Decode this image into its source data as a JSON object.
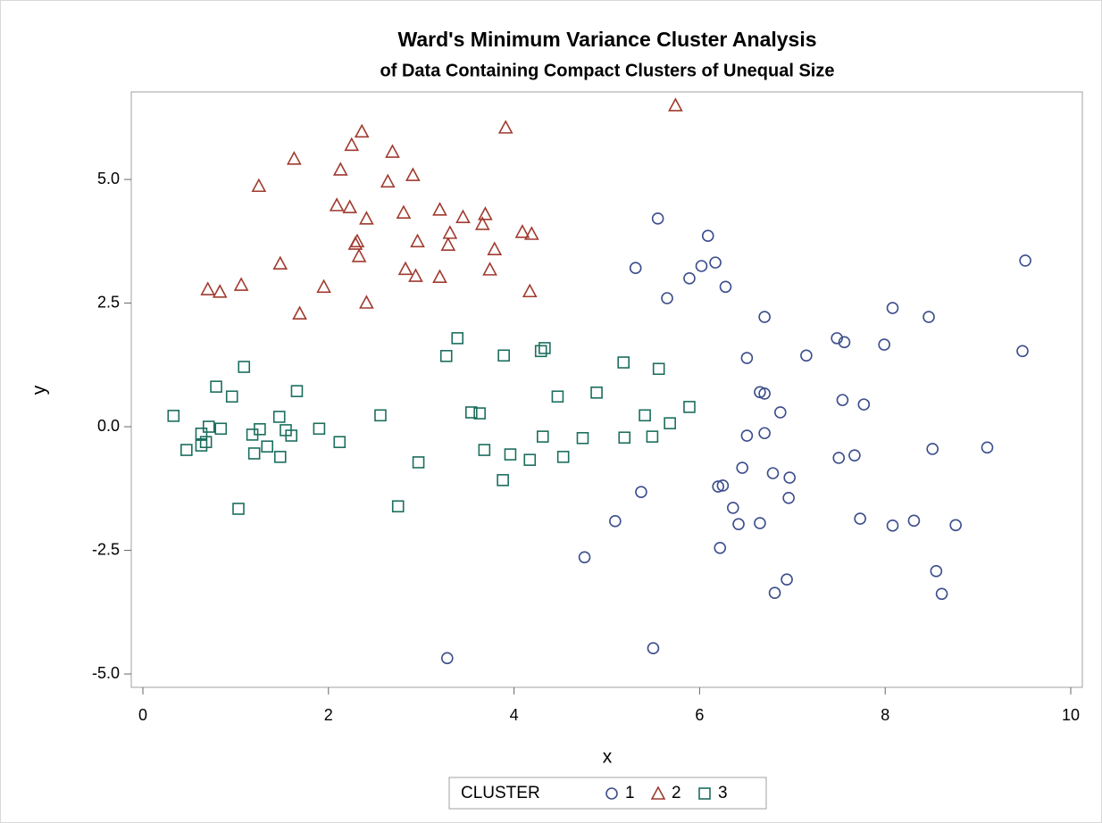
{
  "chart_data": {
    "type": "scatter",
    "title": "Ward's Minimum Variance Cluster Analysis",
    "subtitle": "of Data Containing Compact Clusters of Unequal Size",
    "x_label": "x",
    "y_label": "y",
    "legend_title": "CLUSTER",
    "legend_position": "bottom",
    "xlim": [
      -0.125,
      10.125
    ],
    "ylim": [
      -5.27,
      6.77
    ],
    "xticks": [
      0,
      2,
      4,
      6,
      8,
      10
    ],
    "yticks": [
      {
        "value": -5,
        "label": "-5.0"
      },
      -2.5,
      {
        "value": 0,
        "label": "0.0"
      },
      2.5,
      {
        "value": 5,
        "label": "5.0"
      }
    ],
    "grid": false,
    "series": [
      {
        "name": "1",
        "color": "#3b4d8c",
        "marker": "circle",
        "x": [
          5.55,
          6.09,
          5.31,
          6.02,
          6.17,
          5.89,
          6.28,
          5.65,
          6.7,
          9.51,
          8.08,
          8.47,
          7.48,
          7.56,
          7.99,
          7.15,
          6.51,
          9.48,
          6.65,
          6.7,
          7.54,
          7.77,
          6.87,
          6.7,
          6.51,
          7.5,
          7.67,
          8.51,
          9.1,
          6.46,
          6.79,
          6.97,
          6.2,
          6.25,
          5.37,
          6.96,
          6.36,
          5.09,
          6.42,
          6.65,
          7.73,
          8.08,
          8.31,
          8.76,
          6.22,
          4.76,
          8.55,
          6.94,
          6.81,
          8.61,
          5.5,
          3.28
        ],
        "values": [
          4.21,
          3.86,
          3.21,
          3.25,
          3.32,
          3.0,
          2.83,
          2.6,
          2.22,
          3.36,
          2.4,
          2.22,
          1.79,
          1.71,
          1.66,
          1.44,
          1.39,
          1.53,
          0.7,
          0.67,
          0.54,
          0.45,
          0.29,
          -0.13,
          -0.18,
          -0.63,
          -0.58,
          -0.45,
          -0.42,
          -0.83,
          -0.94,
          -1.03,
          -1.21,
          -1.19,
          -1.32,
          -1.44,
          -1.64,
          -1.91,
          -1.97,
          -1.95,
          -1.86,
          -2.0,
          -1.9,
          -1.99,
          -2.45,
          -2.64,
          -2.92,
          -3.09,
          -3.36,
          -3.38,
          -4.48,
          -4.68
        ]
      },
      {
        "name": "2",
        "color": "#a03a2e",
        "marker": "triangle",
        "x": [
          5.74,
          2.36,
          3.91,
          2.25,
          2.69,
          1.63,
          2.13,
          2.91,
          2.64,
          1.25,
          2.09,
          2.23,
          3.2,
          2.81,
          3.69,
          3.45,
          2.41,
          3.66,
          4.09,
          4.19,
          3.31,
          2.31,
          2.96,
          2.29,
          3.29,
          3.79,
          2.33,
          1.48,
          2.83,
          3.74,
          2.94,
          3.2,
          1.06,
          0.7,
          0.83,
          1.95,
          4.17,
          1.69,
          2.41
        ],
        "values": [
          6.5,
          5.97,
          6.05,
          5.7,
          5.56,
          5.42,
          5.2,
          5.09,
          4.96,
          4.87,
          4.48,
          4.44,
          4.39,
          4.33,
          4.3,
          4.24,
          4.21,
          4.1,
          3.94,
          3.9,
          3.92,
          3.75,
          3.75,
          3.7,
          3.68,
          3.59,
          3.45,
          3.3,
          3.19,
          3.18,
          3.05,
          3.03,
          2.87,
          2.78,
          2.73,
          2.83,
          2.74,
          2.29,
          2.51
        ]
      },
      {
        "name": "3",
        "color": "#1b6e5e",
        "marker": "square",
        "x": [
          3.39,
          4.29,
          4.33,
          3.89,
          3.27,
          5.18,
          5.56,
          1.09,
          0.79,
          1.66,
          4.89,
          0.96,
          4.47,
          5.89,
          0.33,
          2.56,
          3.54,
          3.63,
          5.41,
          1.47,
          5.68,
          0.71,
          0.84,
          1.9,
          1.26,
          0.63,
          1.54,
          1.18,
          1.6,
          4.31,
          5.49,
          5.19,
          4.74,
          0.68,
          0.63,
          2.12,
          1.34,
          0.47,
          3.68,
          1.2,
          3.96,
          1.48,
          4.53,
          4.17,
          2.97,
          3.88,
          1.03,
          2.75
        ],
        "values": [
          1.79,
          1.53,
          1.59,
          1.44,
          1.43,
          1.3,
          1.17,
          1.21,
          0.81,
          0.72,
          0.69,
          0.61,
          0.61,
          0.4,
          0.22,
          0.23,
          0.29,
          0.27,
          0.23,
          0.2,
          0.07,
          0.0,
          -0.04,
          -0.04,
          -0.05,
          -0.14,
          -0.07,
          -0.16,
          -0.18,
          -0.2,
          -0.2,
          -0.22,
          -0.23,
          -0.31,
          -0.38,
          -0.31,
          -0.4,
          -0.47,
          -0.47,
          -0.54,
          -0.56,
          -0.61,
          -0.61,
          -0.67,
          -0.72,
          -1.08,
          -1.66,
          -1.61
        ]
      }
    ]
  }
}
